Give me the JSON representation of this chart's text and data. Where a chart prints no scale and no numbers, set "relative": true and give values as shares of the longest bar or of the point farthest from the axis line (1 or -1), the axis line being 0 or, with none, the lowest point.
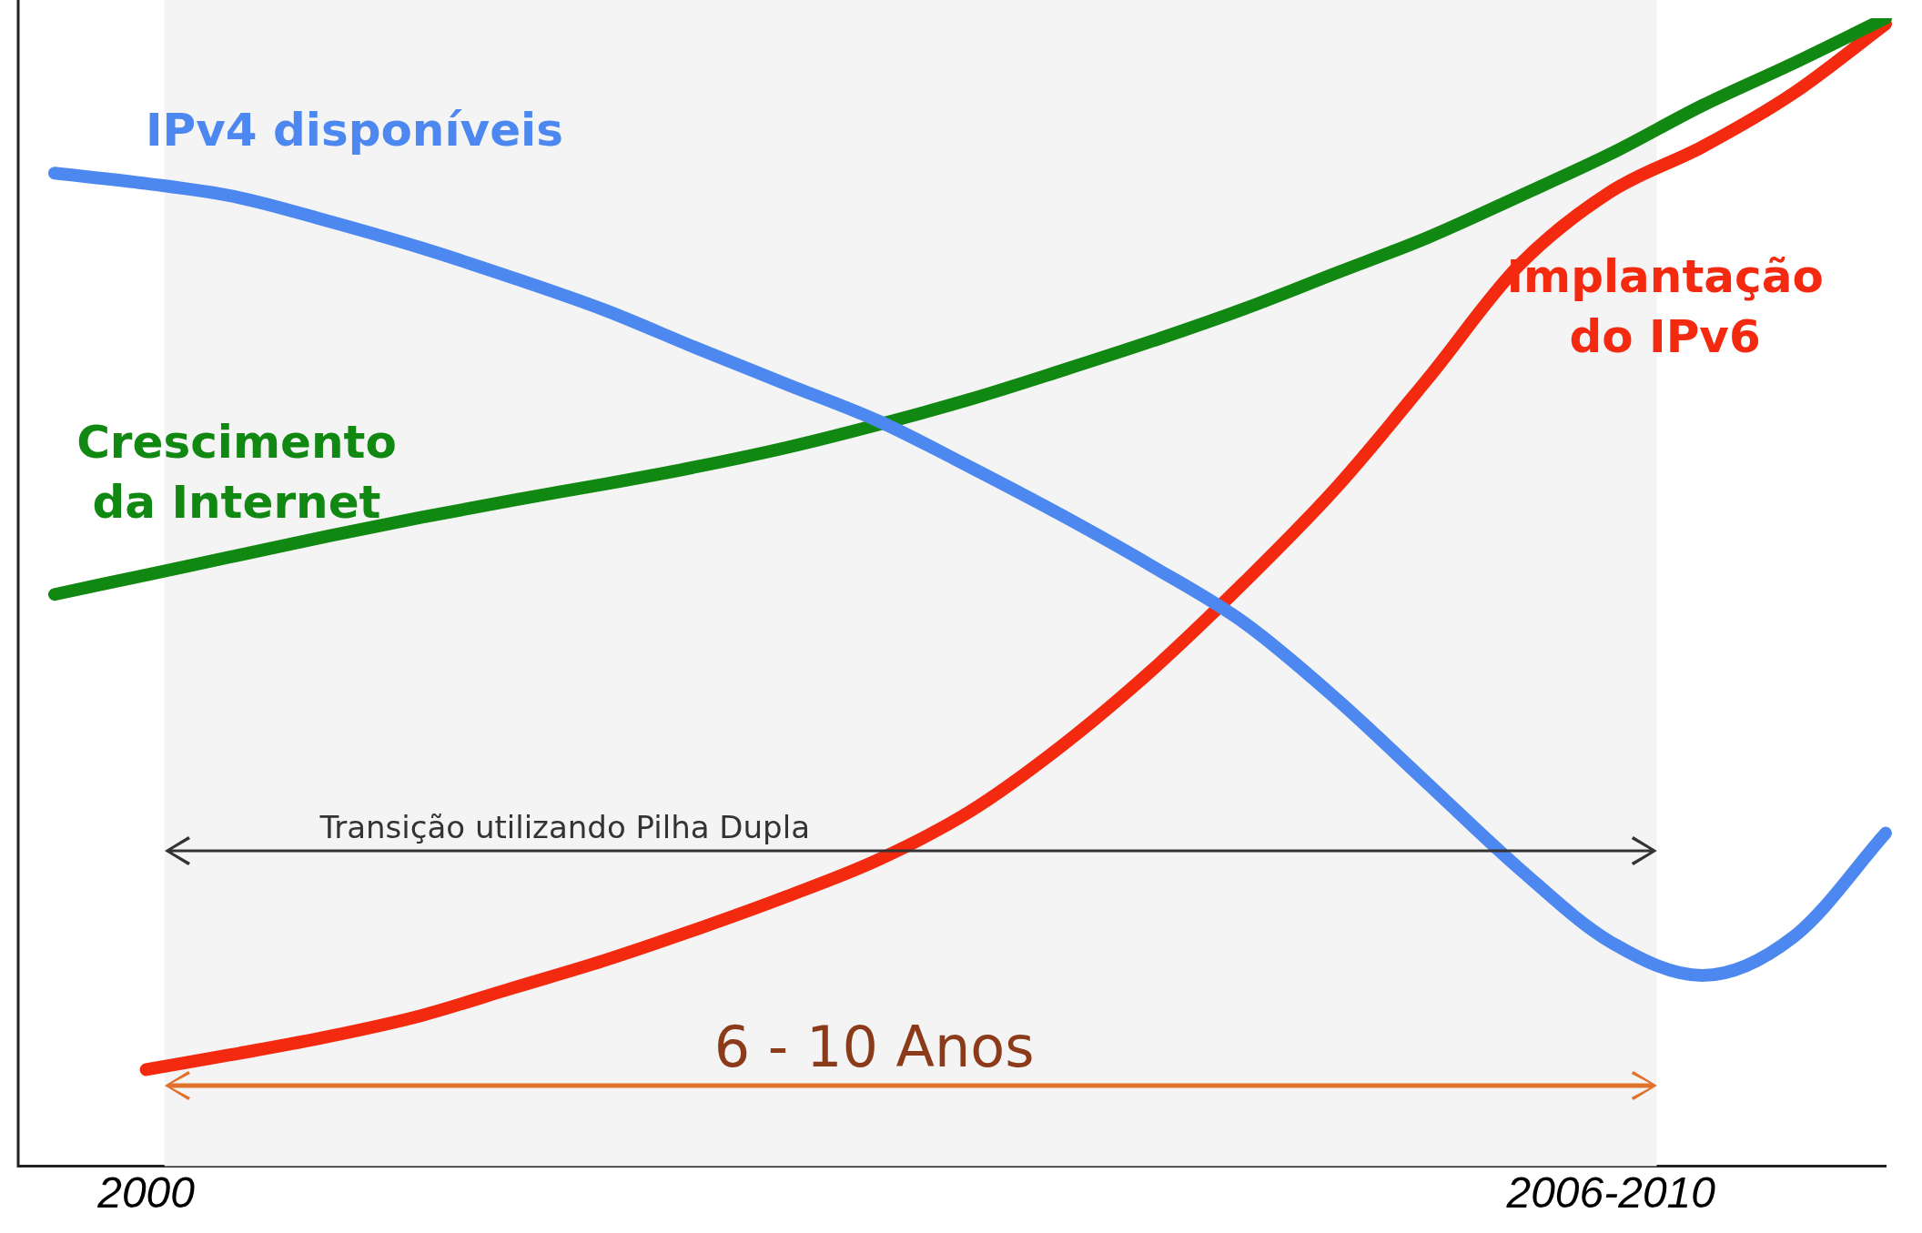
{
  "chart_data": {
    "type": "line",
    "relative": true,
    "categories": [
      null,
      "2000",
      null,
      null,
      null,
      null,
      null,
      null,
      null,
      null,
      null,
      null,
      null,
      null,
      null,
      null,
      null,
      "2006-2010",
      null,
      null,
      null
    ],
    "tick_labels": "x",
    "grid": false,
    "legend": false,
    "marker": "none",
    "line_style": "solid",
    "bands": [
      {
        "axis": "x",
        "from": "2000",
        "to": "2006-2010",
        "color": "#f4f4f4"
      }
    ],
    "annotations": [
      "Transição utilizando Pilha Dupla",
      "6  - 10 Anos"
    ],
    "series": [
      {
        "name": "IPv4 disponíveis",
        "color": "#4d88f0",
        "values": [
          0.865,
          0.856,
          0.844,
          0.823,
          0.8,
          0.774,
          0.746,
          0.713,
          0.681,
          0.649,
          0.609,
          0.567,
          0.522,
          0.473,
          0.407,
          0.333,
          0.259,
          0.195,
          0.166,
          0.2,
          0.29
        ]
      },
      {
        "name": "Crescimento da Internet",
        "color": "#118811",
        "values": [
          0.498,
          0.515,
          0.532,
          0.549,
          0.565,
          0.58,
          0.594,
          0.609,
          0.626,
          0.646,
          0.668,
          0.693,
          0.719,
          0.747,
          0.778,
          0.809,
          0.845,
          0.882,
          0.924,
          0.961,
          1.0
        ]
      },
      {
        "name": "Implantação do IPv6",
        "color": "#f42a10",
        "values": [
          null,
          0.084,
          0.098,
          0.113,
          0.131,
          0.155,
          0.179,
          0.206,
          0.235,
          0.267,
          0.309,
          0.366,
          0.433,
          0.509,
          0.591,
          0.686,
          0.785,
          0.849,
          0.888,
          0.935,
          0.995
        ]
      }
    ]
  }
}
